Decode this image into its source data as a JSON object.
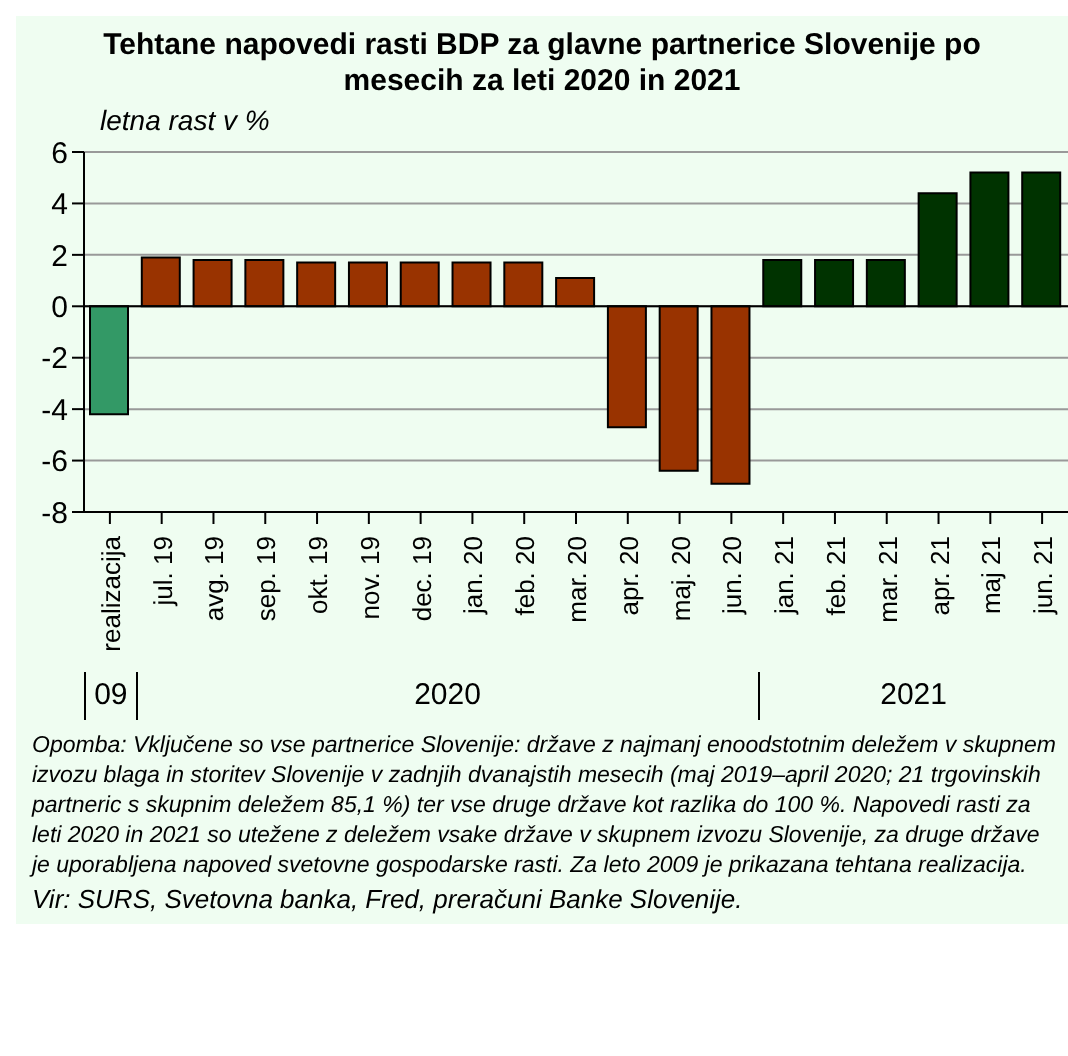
{
  "chart_data": {
    "type": "bar",
    "title": "Tehtane napovedi rasti BDP za glavne partnerice Slovenije po mesecih za leti 2020 in 2021",
    "ylabel": "letna rast v %",
    "categories": [
      "realizacija",
      "jul. 19",
      "avg. 19",
      "sep. 19",
      "okt. 19",
      "nov. 19",
      "dec. 19",
      "jan. 20",
      "feb. 20",
      "mar. 20",
      "apr. 20",
      "maj. 20",
      "jun. 20",
      "jan. 21",
      "feb. 21",
      "mar. 21",
      "apr. 21",
      "maj 21",
      "jun. 21"
    ],
    "values": [
      -4.2,
      1.9,
      1.8,
      1.8,
      1.7,
      1.7,
      1.7,
      1.7,
      1.7,
      1.1,
      -4.7,
      -6.4,
      -6.9,
      1.8,
      1.8,
      1.8,
      4.4,
      5.2,
      5.2
    ],
    "colors": [
      "#339966",
      "#993300",
      "#993300",
      "#993300",
      "#993300",
      "#993300",
      "#993300",
      "#993300",
      "#993300",
      "#993300",
      "#993300",
      "#993300",
      "#993300",
      "#003300",
      "#003300",
      "#003300",
      "#003300",
      "#003300",
      "#003300"
    ],
    "ylim": [
      -8,
      6
    ],
    "yticks": [
      -8,
      -6,
      -4,
      -2,
      0,
      2,
      4,
      6
    ],
    "grid": "y",
    "annotations": [
      "09",
      "2020",
      "2021",
      "Opomba: Vključene so vse partnerice Slovenije: države z najmanj enoodstotnim deležem v skupnem izvozu blaga in storitev Slovenije v zadnjih dvanajstih mesecih (maj 2019–april 2020; 21 trgovinskih partneric s skupnim deležem 85,1 %) ter vse druge države kot razlika do 100 %. Napovedi rasti za leti 2020 in 2021 so utežene z deležem vsake države v skupnem izvozu Slovenije, za druge države je uporabljena napoved svetovne gospodarske rasti. Za leto 2009 je prikazana tehtana realizacija.",
      "Vir: SURS, Svetovna banka, Fred, preračuni Banke Slovenije."
    ]
  }
}
